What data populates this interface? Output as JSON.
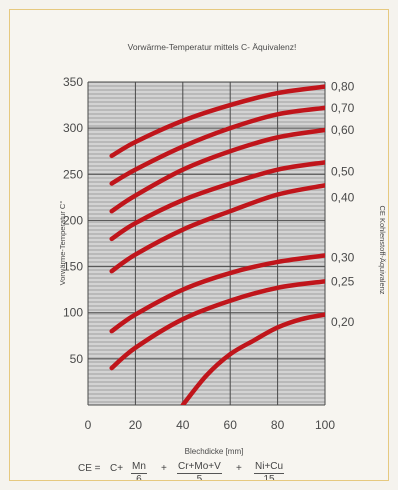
{
  "chart_data": {
    "type": "line",
    "title": "Vorwärme-Temperatur mittels C- Äquivalenz!",
    "xlabel": "Blechdicke [mm]",
    "ylabel": "Vorwärme-Temperatur C°",
    "ylabel_right": "CE Kohlenstoff-Äquivalenz",
    "xlim": [
      0,
      100
    ],
    "ylim": [
      0,
      350
    ],
    "xticks": [
      "0",
      "20",
      "40",
      "60",
      "80",
      "100"
    ],
    "yticks": [
      "50",
      "100",
      "150",
      "200",
      "250",
      "300",
      "350"
    ],
    "grid": true,
    "series": [
      {
        "name": "0,80",
        "x": [
          10,
          20,
          40,
          60,
          80,
          100
        ],
        "y": [
          270,
          285,
          308,
          325,
          338,
          345
        ]
      },
      {
        "name": "0,70",
        "x": [
          10,
          20,
          40,
          60,
          80,
          100
        ],
        "y": [
          240,
          255,
          280,
          300,
          315,
          322
        ]
      },
      {
        "name": "0,60",
        "x": [
          10,
          20,
          40,
          60,
          80,
          100
        ],
        "y": [
          210,
          227,
          255,
          275,
          290,
          298
        ]
      },
      {
        "name": "0,50",
        "x": [
          10,
          20,
          40,
          60,
          80,
          100
        ],
        "y": [
          180,
          197,
          222,
          240,
          255,
          263
        ]
      },
      {
        "name": "0,40",
        "x": [
          10,
          20,
          40,
          60,
          80,
          100
        ],
        "y": [
          145,
          163,
          190,
          210,
          228,
          238
        ]
      },
      {
        "name": "0,30",
        "x": [
          10,
          20,
          40,
          60,
          80,
          100
        ],
        "y": [
          80,
          98,
          125,
          143,
          155,
          162
        ]
      },
      {
        "name": "0,25",
        "x": [
          10,
          20,
          40,
          60,
          80,
          100
        ],
        "y": [
          40,
          62,
          93,
          113,
          127,
          134
        ]
      },
      {
        "name": "0,20",
        "x": [
          40,
          50,
          60,
          70,
          80,
          90,
          100
        ],
        "y": [
          0,
          32,
          55,
          70,
          84,
          93,
          98
        ]
      }
    ],
    "right_labels": [
      {
        "text": "0,80",
        "y": 345
      },
      {
        "text": "0,70",
        "y": 322
      },
      {
        "text": "0,60",
        "y": 298
      },
      {
        "text": "0,50",
        "y": 253
      },
      {
        "text": "0,40",
        "y": 225
      },
      {
        "text": "0,30",
        "y": 160
      },
      {
        "text": "0,25",
        "y": 134
      },
      {
        "text": "0,20",
        "y": 90
      }
    ]
  },
  "formula": {
    "lhs": "CE =",
    "c": "C+",
    "mn_num": "Mn",
    "mn_den": "6",
    "plus1": "+",
    "cr_num": "Cr+Mo+V",
    "cr_den": "5",
    "plus2": "+",
    "ni_num": "Ni+Cu",
    "ni_den": "15"
  },
  "colors": {
    "curve": "#c0151b",
    "plot_bg": "#b9b9b9",
    "stripe": "#d3d3d3",
    "grid_major": "#4a4a4a",
    "card_border": "#e6c980"
  }
}
